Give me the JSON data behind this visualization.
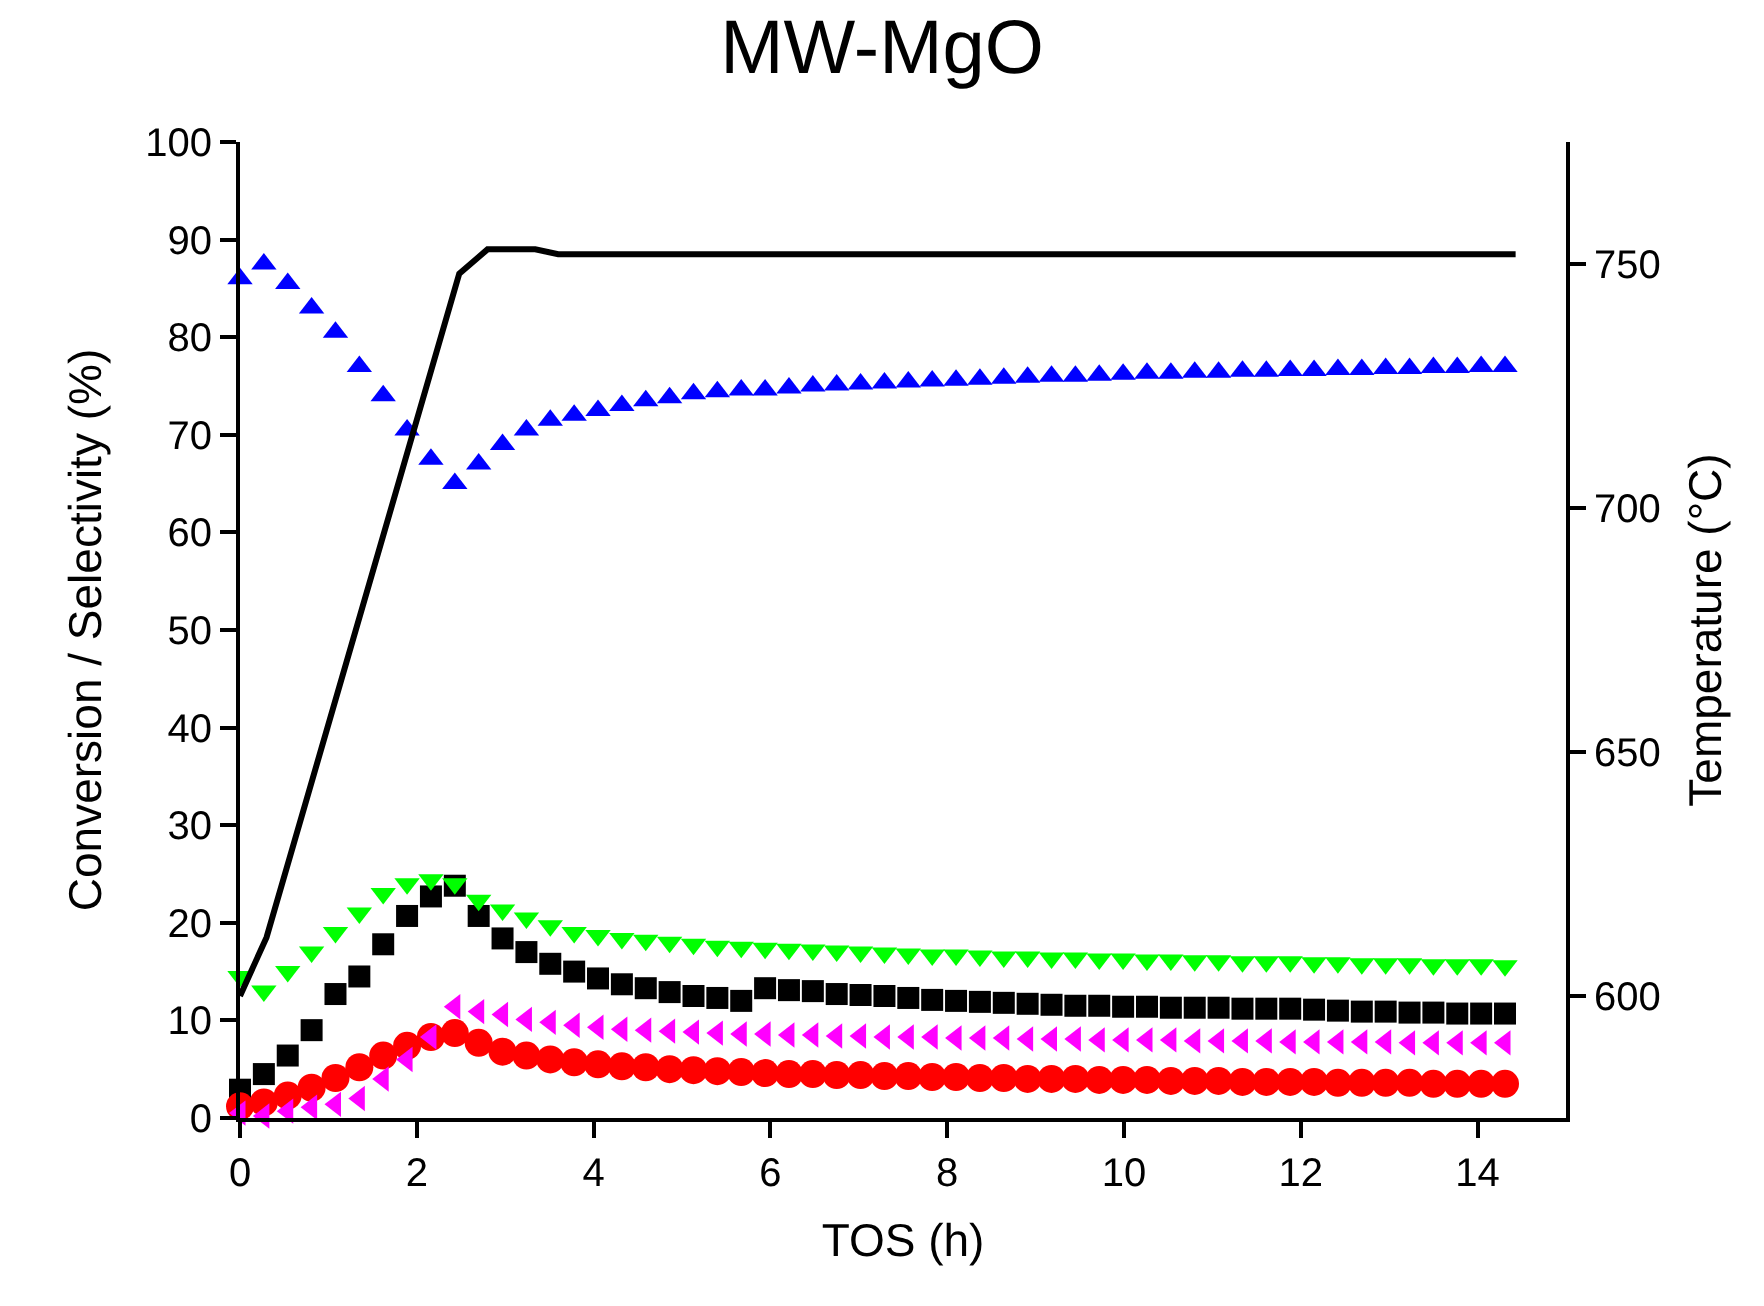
{
  "chart_data": {
    "type": "scatter",
    "title": "MW-MgO",
    "xlabel": "TOS (h)",
    "ylabel": "Conversion / Selectivity (%)",
    "y2label": "Temperature (°C)",
    "x": [
      0,
      0.27,
      0.54,
      0.81,
      1.08,
      1.35,
      1.62,
      1.89,
      2.16,
      2.43,
      2.7,
      2.97,
      3.24,
      3.51,
      3.78,
      4.05,
      4.32,
      4.59,
      4.86,
      5.13,
      5.4,
      5.67,
      5.94,
      6.21,
      6.48,
      6.75,
      7.02,
      7.29,
      7.56,
      7.83,
      8.1,
      8.37,
      8.64,
      8.91,
      9.18,
      9.45,
      9.72,
      9.99,
      10.26,
      10.53,
      10.8,
      11.07,
      11.34,
      11.61,
      11.88,
      12.15,
      12.42,
      12.69,
      12.96,
      13.23,
      13.5,
      13.77,
      14.04,
      14.31
    ],
    "series": [
      {
        "color": "#0000ff",
        "marker": "triangle",
        "values": [
          86,
          87.5,
          85.5,
          83,
          80.5,
          77,
          74,
          70.5,
          67.5,
          65,
          67,
          69,
          70.5,
          71.5,
          72,
          72.5,
          73,
          73.5,
          73.8,
          74.2,
          74.4,
          74.6,
          74.6,
          74.8,
          75,
          75.1,
          75.2,
          75.3,
          75.4,
          75.5,
          75.6,
          75.7,
          75.8,
          75.9,
          76,
          76,
          76.1,
          76.2,
          76.3,
          76.3,
          76.4,
          76.4,
          76.5,
          76.5,
          76.6,
          76.6,
          76.7,
          76.7,
          76.8,
          76.8,
          76.9,
          76.9,
          77,
          77
        ]
      },
      {
        "color": "#00ff00",
        "marker": "triangle-down",
        "values": [
          14.5,
          13,
          15,
          17,
          19,
          21,
          23,
          24,
          24.4,
          24,
          22.3,
          21.3,
          20.5,
          19.7,
          19,
          18.7,
          18.4,
          18.2,
          18,
          17.8,
          17.6,
          17.5,
          17.4,
          17.3,
          17.2,
          17.1,
          17,
          16.9,
          16.8,
          16.7,
          16.7,
          16.6,
          16.5,
          16.5,
          16.4,
          16.4,
          16.3,
          16.3,
          16.2,
          16.2,
          16.1,
          16.1,
          16,
          16,
          16,
          15.9,
          15.9,
          15.8,
          15.8,
          15.8,
          15.7,
          15.7,
          15.7,
          15.6
        ]
      },
      {
        "color": "#000000",
        "marker": "square",
        "values": [
          2.9,
          4.5,
          6.4,
          9,
          12.7,
          14.5,
          17.8,
          20.7,
          22.7,
          23.8,
          20.7,
          18.4,
          17,
          15.8,
          15,
          14.3,
          13.7,
          13.3,
          12.9,
          12.5,
          12.3,
          12,
          13.3,
          13.1,
          13,
          12.7,
          12.6,
          12.5,
          12.3,
          12.1,
          12,
          11.9,
          11.8,
          11.7,
          11.6,
          11.5,
          11.5,
          11.4,
          11.4,
          11.3,
          11.3,
          11.3,
          11.2,
          11.2,
          11.2,
          11.1,
          11,
          10.9,
          10.9,
          10.8,
          10.8,
          10.7,
          10.7,
          10.7
        ]
      },
      {
        "color": "#ff00ff",
        "marker": "triangle-left",
        "values": [
          0.5,
          0.2,
          0.7,
          1.1,
          1.4,
          2,
          4,
          6,
          8.3,
          11.4,
          10.9,
          10.6,
          10.1,
          9.8,
          9.5,
          9.3,
          9.1,
          9,
          8.9,
          8.8,
          8.7,
          8.6,
          8.6,
          8.5,
          8.5,
          8.4,
          8.4,
          8.3,
          8.3,
          8.3,
          8.2,
          8.2,
          8.2,
          8.1,
          8.1,
          8.1,
          8,
          8,
          8,
          8,
          7.9,
          7.9,
          7.9,
          7.9,
          7.8,
          7.8,
          7.8,
          7.8,
          7.8,
          7.7,
          7.7,
          7.7,
          7.7,
          7.7
        ]
      },
      {
        "color": "#ff0000",
        "marker": "circle",
        "values": [
          1.2,
          1.6,
          2.3,
          3.1,
          4.1,
          5.2,
          6.4,
          7.4,
          8.3,
          8.7,
          7.7,
          6.8,
          6.4,
          6,
          5.7,
          5.5,
          5.3,
          5.2,
          5,
          4.9,
          4.8,
          4.7,
          4.6,
          4.5,
          4.5,
          4.4,
          4.4,
          4.3,
          4.3,
          4.2,
          4.2,
          4.1,
          4.1,
          4,
          4,
          4,
          3.9,
          3.9,
          3.9,
          3.8,
          3.8,
          3.8,
          3.7,
          3.7,
          3.7,
          3.7,
          3.6,
          3.6,
          3.6,
          3.6,
          3.5,
          3.5,
          3.5,
          3.5
        ]
      },
      {
        "type": "line",
        "axis": "y2",
        "color": "#000000",
        "marker": "none",
        "line_style": "solid",
        "x": [
          0,
          0.3,
          2.48,
          2.8,
          3.34,
          3.6,
          14.43
        ],
        "values": [
          600,
          612,
          748,
          753,
          753,
          752,
          752
        ]
      }
    ],
    "xlim": [
      0,
      15
    ],
    "xticks": [
      0,
      2,
      4,
      6,
      8,
      10,
      12,
      14
    ],
    "ylim": [
      0,
      100
    ],
    "yticks": [
      0,
      10,
      20,
      30,
      40,
      50,
      60,
      70,
      80,
      90,
      100
    ],
    "y2lim": [
      575,
      775
    ],
    "y2ticks": [
      600,
      650,
      700,
      750
    ]
  }
}
